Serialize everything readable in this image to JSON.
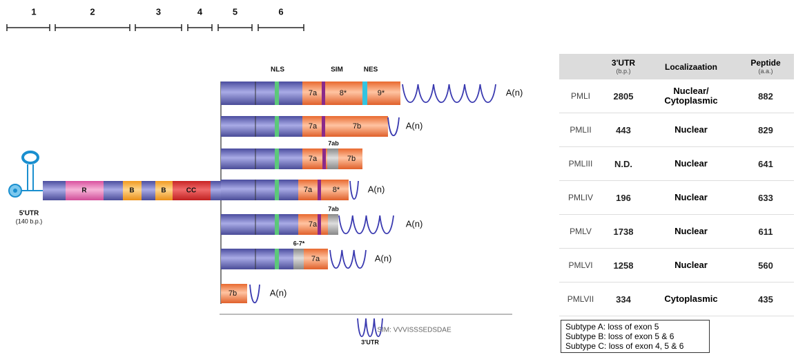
{
  "scale": [
    "1",
    "2",
    "3",
    "4",
    "5",
    "6"
  ],
  "gene": {
    "utr_label": "5'UTR",
    "utr_size": "(140 b.p.)",
    "domains": [
      "R",
      "B",
      "B",
      "CC"
    ]
  },
  "motifs": [
    "NLS",
    "SIM",
    "NES"
  ],
  "isoforms": [
    {
      "segments": [
        "7a",
        "8*",
        "9*"
      ],
      "tail": "A(n)"
    },
    {
      "segments": [
        "7a",
        "7b"
      ],
      "tail": "A(n)"
    },
    {
      "segments": [
        "7a",
        "7b"
      ],
      "above": "7ab"
    },
    {
      "segments": [
        "7a",
        "8*"
      ],
      "tail": "A(n)"
    },
    {
      "segments": [
        "7a"
      ],
      "above": "7ab",
      "tail": "A(n)"
    },
    {
      "segments": [
        "7a"
      ],
      "above": "6-7*",
      "tail": "A(n)"
    },
    {
      "segments": [
        "7b"
      ],
      "tail": "A(n)"
    }
  ],
  "legend": {
    "wave_label": "3'UTR",
    "sim": "SIM: VVVISSSEDSDAE"
  },
  "table": {
    "headers": [
      {
        "text": "3'UTR",
        "sub": "(b.p.)"
      },
      {
        "text": "Localizaation"
      },
      {
        "text": "Peptide",
        "sub": "(a.a.)"
      }
    ],
    "rows": [
      [
        "PMLI",
        "2805",
        "Nuclear/ Cytoplasmic",
        "882"
      ],
      [
        "PMLII",
        "443",
        "Nuclear",
        "829"
      ],
      [
        "PMLIII",
        "N.D.",
        "Nuclear",
        "641"
      ],
      [
        "PMLIV",
        "196",
        "Nuclear",
        "633"
      ],
      [
        "PMLV",
        "1738",
        "Nuclear",
        "611"
      ],
      [
        "PMLVI",
        "1258",
        "Nuclear",
        "560"
      ],
      [
        "PMLVII",
        "334",
        "Cytoplasmic",
        "435"
      ]
    ]
  },
  "subtypes": [
    "Subtype A: loss of exon 5",
    "Subtype B: loss of exon 5 & 6",
    "Subtype C: loss of exon 4, 5 & 6"
  ]
}
